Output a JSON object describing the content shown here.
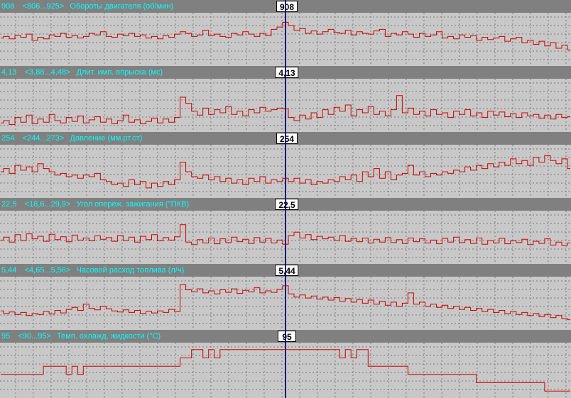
{
  "cursor_index": 50,
  "chart_data": [
    {
      "type": "line",
      "value_text": "908",
      "range_text": "<806...925>",
      "label": "Обороты двигателя (об/мин)",
      "cursor_value": "908",
      "ylim": [
        806,
        925
      ],
      "color": "#d00000",
      "values": [
        868,
        872,
        866,
        874,
        870,
        878,
        862,
        870,
        866,
        876,
        872,
        880,
        870,
        874,
        868,
        872,
        880,
        876,
        884,
        872,
        870,
        878,
        874,
        880,
        872,
        876,
        868,
        872,
        866,
        874,
        870,
        878,
        884,
        880,
        872,
        876,
        888,
        874,
        878,
        872,
        870,
        880,
        876,
        884,
        878,
        872,
        880,
        874,
        890,
        896,
        908,
        900,
        888,
        892,
        880,
        886,
        878,
        884,
        890,
        882,
        880,
        888,
        876,
        884,
        880,
        878,
        886,
        890,
        872,
        880,
        876,
        884,
        878,
        870,
        880,
        872,
        876,
        884,
        868,
        872,
        866,
        876,
        870,
        874,
        862,
        870,
        864,
        868,
        872,
        860,
        866,
        870,
        856,
        862,
        852,
        860,
        848,
        856,
        842,
        850,
        838
      ]
    },
    {
      "type": "line",
      "value_text": "4,13",
      "range_text": "<3,88...4,48>",
      "label": "Длит. имп. впрыска (мс)",
      "cursor_value": "4,13",
      "ylim": [
        3.88,
        4.48
      ],
      "color": "#d00000",
      "values": [
        3.95,
        3.98,
        3.93,
        4.02,
        3.96,
        4.05,
        3.94,
        4.0,
        3.96,
        4.06,
        3.98,
        3.95,
        4.02,
        3.97,
        4.04,
        3.95,
        3.99,
        4.03,
        3.96,
        4.0,
        3.94,
        3.98,
        4.05,
        3.96,
        3.99,
        3.94,
        3.97,
        4.01,
        3.95,
        4.0,
        3.96,
        4.02,
        4.28,
        4.2,
        4.1,
        4.05,
        4.14,
        4.06,
        4.12,
        4.08,
        4.16,
        4.06,
        4.1,
        4.04,
        4.12,
        4.08,
        4.15,
        4.1,
        4.12,
        4.14,
        4.13,
        4.02,
        3.98,
        4.05,
        4.0,
        4.08,
        4.02,
        4.12,
        4.06,
        4.15,
        4.1,
        4.18,
        4.04,
        4.12,
        4.08,
        4.16,
        4.06,
        4.1,
        4.04,
        4.12,
        4.3,
        4.08,
        4.14,
        4.06,
        4.1,
        4.04,
        4.12,
        4.06,
        4.08,
        4.02,
        4.1,
        4.06,
        4.12,
        4.04,
        4.08,
        4.02,
        4.1,
        4.05,
        4.09,
        4.03,
        4.07,
        4.02,
        4.08,
        4.04,
        4.06,
        4.01,
        4.05,
        4.0,
        4.06,
        4.02,
        4.03
      ]
    },
    {
      "type": "line",
      "value_text": "254",
      "range_text": "<244...273>",
      "label": "Давление (мм.рт.ст)",
      "cursor_value": "254",
      "ylim": [
        244,
        273
      ],
      "color": "#d00000",
      "values": [
        258,
        260,
        257,
        262,
        259,
        261,
        258,
        263,
        260,
        258,
        256,
        257,
        255,
        256,
        254,
        256,
        255,
        257,
        253,
        252,
        250,
        251,
        249,
        253,
        250,
        252,
        248,
        251,
        249,
        252,
        250,
        253,
        264,
        258,
        255,
        254,
        256,
        253,
        255,
        252,
        254,
        251,
        253,
        250,
        254,
        252,
        255,
        251,
        253,
        252,
        254,
        252,
        254,
        251,
        253,
        250,
        252,
        251,
        253,
        252,
        255,
        253,
        256,
        252,
        258,
        255,
        260,
        254,
        258,
        253,
        256,
        257,
        262,
        256,
        258,
        255,
        257,
        256,
        258,
        257,
        259,
        258,
        261,
        259,
        262,
        260,
        263,
        261,
        264,
        262,
        266,
        263,
        265,
        262,
        267,
        264,
        268,
        265,
        263,
        266,
        260
      ]
    },
    {
      "type": "line",
      "value_text": "22,5",
      "range_text": "<18,6...29,9>",
      "label": "Угол опереж. зажигания (°ПКВ)",
      "cursor_value": "22,5",
      "ylim": [
        18.6,
        29.9
      ],
      "color": "#d00000",
      "values": [
        23.5,
        24.2,
        23.0,
        24.8,
        23.4,
        25.0,
        23.8,
        24.4,
        23.2,
        24.9,
        23.6,
        24.3,
        23.1,
        24.7,
        23.5,
        24.0,
        23.3,
        24.5,
        23.7,
        24.1,
        23.2,
        24.6,
        23.4,
        24.2,
        23.0,
        24.4,
        23.6,
        24.8,
        23.3,
        24.1,
        23.5,
        24.3,
        27.2,
        23.0,
        22.4,
        23.6,
        22.8,
        24.0,
        22.6,
        23.8,
        22.9,
        24.2,
        23.1,
        23.7,
        22.7,
        24.1,
        23.0,
        23.9,
        22.8,
        23.5,
        22.5,
        24.6,
        25.4,
        24.0,
        24.8,
        23.6,
        24.4,
        23.8,
        24.2,
        23.4,
        24.6,
        23.2,
        23.9,
        23.1,
        24.0,
        22.8,
        23.7,
        23.0,
        24.1,
        22.9,
        23.6,
        22.7,
        24.0,
        23.1,
        23.8,
        22.8,
        23.5,
        22.6,
        23.9,
        23.0,
        24.2,
        22.9,
        23.6,
        22.7,
        24.0,
        22.5,
        23.4,
        22.8,
        23.9,
        22.6,
        23.3,
        22.9,
        23.7,
        22.4,
        23.2,
        22.7,
        23.8,
        22.3,
        23.0,
        22.2,
        22.8
      ]
    },
    {
      "type": "line",
      "value_text": "5,44",
      "range_text": "<4,65...5,56>",
      "label": "Часовой расход топлива (л/ч)",
      "cursor_value": "5,44",
      "ylim": [
        4.65,
        5.56
      ],
      "color": "#d00000",
      "values": [
        4.95,
        4.9,
        4.93,
        4.88,
        4.92,
        4.86,
        4.9,
        4.88,
        4.94,
        4.89,
        4.96,
        4.91,
        4.98,
        5.02,
        4.96,
        5.08,
        5.0,
        4.97,
        5.04,
        4.99,
        4.95,
        4.93,
        4.97,
        4.92,
        4.96,
        4.9,
        4.94,
        4.91,
        4.95,
        4.92,
        4.98,
        4.94,
        5.46,
        5.36,
        5.32,
        5.38,
        5.3,
        5.34,
        5.28,
        5.36,
        5.31,
        5.38,
        5.29,
        5.35,
        5.32,
        5.4,
        5.3,
        5.34,
        5.31,
        5.37,
        5.44,
        5.28,
        5.22,
        5.26,
        5.2,
        5.24,
        5.18,
        5.22,
        5.16,
        5.21,
        5.14,
        5.19,
        5.12,
        5.17,
        5.1,
        5.16,
        5.08,
        5.14,
        5.06,
        5.12,
        5.04,
        5.1,
        5.3,
        5.08,
        5.12,
        5.04,
        5.08,
        5.02,
        5.06,
        5.0,
        5.04,
        4.98,
        5.02,
        4.96,
        5.0,
        4.94,
        4.98,
        4.92,
        4.96,
        4.9,
        4.94,
        4.88,
        4.92,
        4.86,
        4.9,
        4.84,
        4.88,
        4.82,
        4.86,
        4.8,
        4.78
      ]
    },
    {
      "type": "line",
      "value_text": "95",
      "range_text": "<90...95>",
      "label": "Темп. охлажд. жидкости (°С)",
      "cursor_value": "95",
      "ylim": [
        89.5,
        95.5
      ],
      "color": "#d00000",
      "values": [
        92,
        92,
        92,
        92,
        92,
        92,
        92,
        92,
        93,
        93,
        93,
        93,
        92,
        93,
        92,
        93,
        93,
        93,
        93,
        93,
        93,
        93,
        93,
        93,
        93,
        93,
        93,
        93,
        93,
        93,
        93,
        93,
        94,
        94,
        95,
        95,
        94,
        95,
        94,
        95,
        95,
        95,
        95,
        95,
        95,
        95,
        95,
        95,
        95,
        95,
        95,
        95,
        95,
        95,
        95,
        95,
        95,
        95,
        95,
        95,
        94,
        95,
        94,
        95,
        95,
        93,
        93,
        93,
        93,
        93,
        93,
        93,
        92,
        92,
        92,
        92,
        92,
        92,
        92,
        92,
        92,
        92,
        92,
        92,
        91,
        91,
        91,
        91,
        91,
        91,
        91,
        91,
        91,
        91,
        91,
        91,
        90,
        90,
        90,
        90,
        90
      ]
    }
  ]
}
